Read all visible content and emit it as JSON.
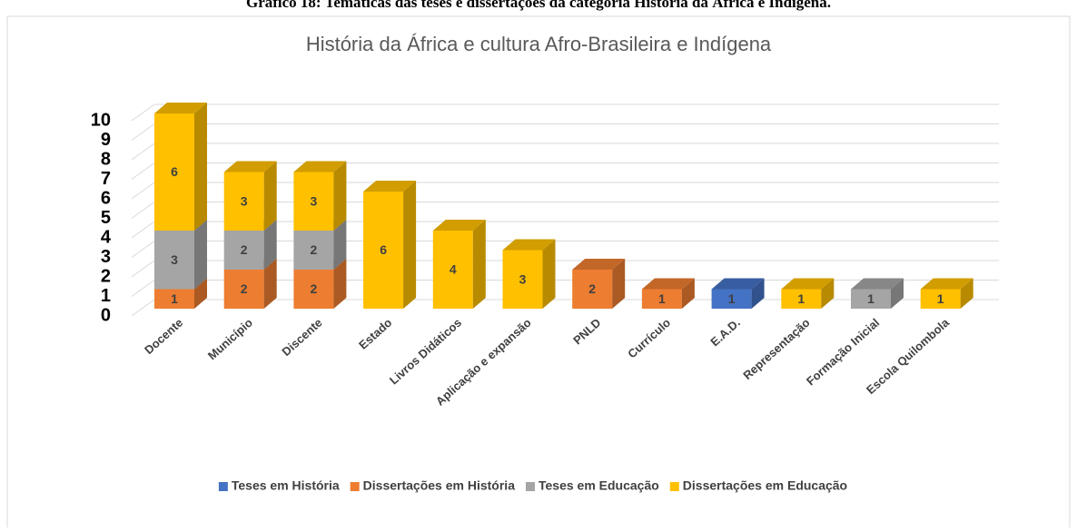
{
  "caption": "Gráfico 18: Temáticas das teses e dissertações da categoria História da África e Indígena.",
  "chart_data": {
    "type": "bar3d_stacked",
    "title": "História da África e cultura Afro-Brasileira e Indígena",
    "categories": [
      "Docente",
      "Município",
      "Discente",
      "Estado",
      "Livros Didáticos",
      "Aplicação e expansão",
      "PNLD",
      "Currículo",
      "E.A.D.",
      "Representação",
      "Formação Inicial",
      "Escola Quilombola"
    ],
    "series": [
      {
        "name": "Teses em História",
        "color": "#4472c4",
        "values": [
          null,
          null,
          null,
          null,
          null,
          null,
          null,
          null,
          1,
          null,
          null,
          null
        ]
      },
      {
        "name": "Dissertações em História",
        "color": "#ed7d31",
        "values": [
          1,
          2,
          2,
          null,
          null,
          null,
          2,
          1,
          null,
          null,
          null,
          null
        ]
      },
      {
        "name": "Teses em Educação",
        "color": "#a5a5a5",
        "values": [
          3,
          2,
          2,
          null,
          null,
          null,
          null,
          null,
          null,
          null,
          1,
          null
        ]
      },
      {
        "name": "Dissertações em Educação",
        "color": "#ffc000",
        "values": [
          6,
          3,
          3,
          6,
          4,
          3,
          null,
          null,
          null,
          1,
          null,
          1
        ]
      }
    ],
    "ylim": [
      0,
      10
    ],
    "yticks": [
      0,
      1,
      2,
      3,
      4,
      5,
      6,
      7,
      8,
      9,
      10
    ],
    "grid": true,
    "legend": "bottom"
  }
}
